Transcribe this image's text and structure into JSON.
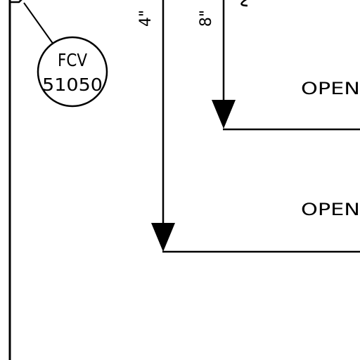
{
  "instrument": {
    "tag_line1": "FCV",
    "tag_line2": "51050"
  },
  "pipes": [
    {
      "size": "4\"",
      "end_label": "OPEN"
    },
    {
      "size": "8\"",
      "end_label": "OPEN"
    }
  ],
  "colors": {
    "line": "#000000",
    "background": "#ffffff"
  }
}
